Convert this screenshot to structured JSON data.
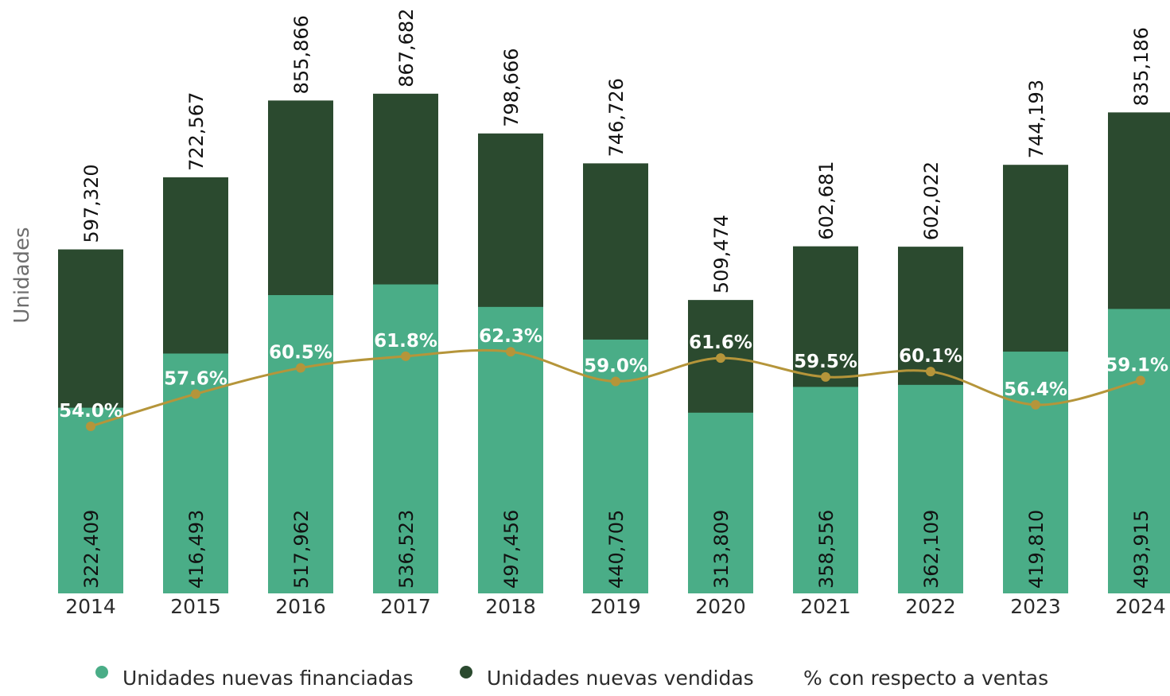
{
  "chart_data": {
    "type": "bar",
    "stacked": true,
    "categories": [
      "2014",
      "2015",
      "2016",
      "2017",
      "2018",
      "2019",
      "2020",
      "2021",
      "2022",
      "2023",
      "2024"
    ],
    "ylabel": "Unidades",
    "series": [
      {
        "name": "Unidades nuevas financiadas",
        "type": "bar",
        "color": "#4aad87",
        "values": [
          322409,
          416493,
          517962,
          536523,
          497456,
          440705,
          313809,
          358556,
          362109,
          419810,
          493915
        ],
        "labels": [
          "322,409",
          "416,493",
          "517,962",
          "536,523",
          "497,456",
          "440,705",
          "313,809",
          "358,556",
          "362,109",
          "419,810",
          "493,915"
        ]
      },
      {
        "name": "Unidades nuevas vendidas",
        "type": "bar",
        "color": "#2b4a2f",
        "values": [
          597320,
          722567,
          855866,
          867682,
          798666,
          746726,
          509474,
          602681,
          602022,
          744193,
          835186
        ],
        "labels": [
          "597,320",
          "722,567",
          "855,866",
          "867,682",
          "798,666",
          "746,726",
          "509,474",
          "602,681",
          "602,022",
          "744,193",
          "835,186"
        ]
      },
      {
        "name": "% con respecto a ventas",
        "type": "line",
        "color": "#b5953a",
        "values": [
          54.0,
          57.6,
          60.5,
          61.8,
          62.3,
          59.0,
          61.6,
          59.5,
          60.1,
          56.4,
          59.1
        ],
        "labels": [
          "54.0%",
          "57.6%",
          "60.5%",
          "61.8%",
          "62.3%",
          "59.0%",
          "61.6%",
          "59.5%",
          "60.1%",
          "56.4%",
          "59.1%"
        ]
      }
    ],
    "legend_position": "bottom",
    "grid": false
  },
  "legend": {
    "financiadas": "Unidades nuevas financiadas",
    "vendidas": "Unidades nuevas vendidas",
    "porcentaje": "% con respecto a ventas"
  }
}
